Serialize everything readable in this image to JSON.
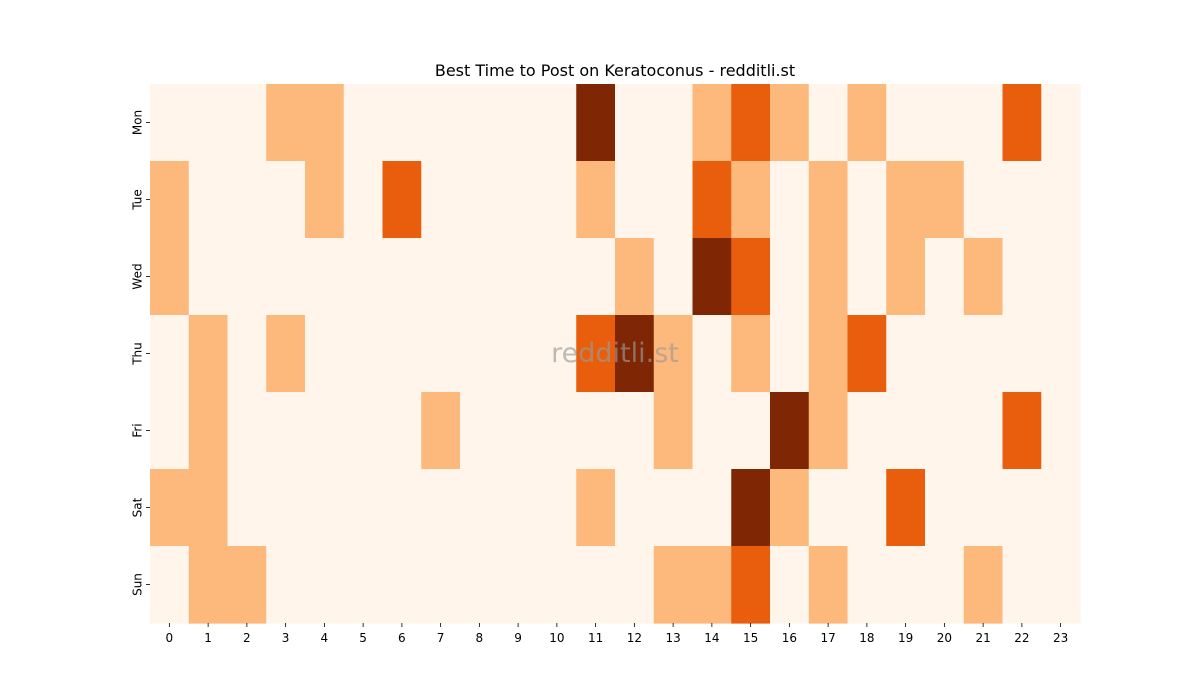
{
  "chart_data": {
    "type": "heatmap",
    "title": "Best Time to Post on Keratoconus - redditli.st",
    "xlabel": "",
    "ylabel": "",
    "x_categories": [
      "0",
      "1",
      "2",
      "3",
      "4",
      "5",
      "6",
      "7",
      "8",
      "9",
      "10",
      "11",
      "12",
      "13",
      "14",
      "15",
      "16",
      "17",
      "18",
      "19",
      "20",
      "21",
      "22",
      "23"
    ],
    "y_categories": [
      "Mon",
      "Tue",
      "Wed",
      "Thu",
      "Fri",
      "Sat",
      "Sun"
    ],
    "values": [
      [
        0,
        0,
        0,
        1,
        1,
        0,
        0,
        0,
        0,
        0,
        0,
        3,
        0,
        0,
        1,
        2,
        1,
        0,
        1,
        0,
        0,
        0,
        2,
        0
      ],
      [
        1,
        0,
        0,
        0,
        1,
        0,
        2,
        0,
        0,
        0,
        0,
        1,
        0,
        0,
        2,
        1,
        0,
        1,
        0,
        1,
        1,
        0,
        0,
        0
      ],
      [
        1,
        0,
        0,
        0,
        0,
        0,
        0,
        0,
        0,
        0,
        0,
        0,
        1,
        0,
        3,
        2,
        0,
        1,
        0,
        1,
        0,
        1,
        0,
        0
      ],
      [
        0,
        1,
        0,
        1,
        0,
        0,
        0,
        0,
        0,
        0,
        0,
        2,
        3,
        1,
        0,
        1,
        0,
        1,
        2,
        0,
        0,
        0,
        0,
        0
      ],
      [
        0,
        1,
        0,
        0,
        0,
        0,
        0,
        1,
        0,
        0,
        0,
        0,
        0,
        1,
        0,
        0,
        3,
        1,
        0,
        0,
        0,
        0,
        2,
        0
      ],
      [
        1,
        1,
        0,
        0,
        0,
        0,
        0,
        0,
        0,
        0,
        0,
        1,
        0,
        0,
        0,
        3,
        1,
        0,
        0,
        2,
        0,
        0,
        0,
        0
      ],
      [
        0,
        1,
        1,
        0,
        0,
        0,
        0,
        0,
        0,
        0,
        0,
        0,
        0,
        1,
        1,
        2,
        0,
        1,
        0,
        0,
        0,
        1,
        0,
        0
      ]
    ],
    "colorscale": "Oranges",
    "colors": [
      "#fff5eb",
      "#fdb87c",
      "#e95e0d",
      "#7f2704"
    ],
    "colorbar": false,
    "grid": false,
    "watermark": "redditli.st"
  }
}
